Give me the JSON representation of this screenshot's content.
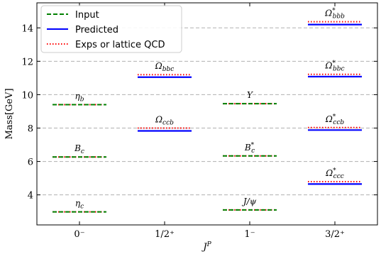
{
  "chart_data": {
    "type": "line",
    "xlabel": "J^P",
    "ylabel": "Mass[GeV]",
    "ylim": [
      2.2,
      15.5
    ],
    "yticks": [
      4,
      6,
      8,
      10,
      12,
      14
    ],
    "grid": "horizontal-dashed",
    "categories": [
      "0⁻",
      "1/2⁺",
      "1⁻",
      "3/2⁺"
    ],
    "legend": {
      "placement": "top-left",
      "entries": [
        {
          "name": "Input",
          "color": "#008000",
          "style": "dashed"
        },
        {
          "name": "Predicted",
          "color": "#0000ff",
          "style": "solid"
        },
        {
          "name": "Exps or lattice QCD",
          "color": "#ff0000",
          "style": "dotted"
        }
      ]
    },
    "levels": [
      {
        "category": 0,
        "label": "η_c",
        "value": 2.98,
        "kind": "input"
      },
      {
        "category": 0,
        "label": "B_c",
        "value": 6.27,
        "kind": "input"
      },
      {
        "category": 0,
        "label": "η_b",
        "value": 9.4,
        "kind": "input"
      },
      {
        "category": 1,
        "label": "Ω_ccb",
        "value": 7.83,
        "kind": "predicted",
        "exp": 8.0
      },
      {
        "category": 1,
        "label": "Ω_bbc",
        "value": 11.05,
        "kind": "predicted",
        "exp": 11.2
      },
      {
        "category": 2,
        "label": "J/ψ",
        "value": 3.1,
        "kind": "input"
      },
      {
        "category": 2,
        "label": "B_c^*",
        "value": 6.33,
        "kind": "input"
      },
      {
        "category": 2,
        "label": "Υ",
        "value": 9.46,
        "kind": "input"
      },
      {
        "category": 3,
        "label": "Ω*_ccc",
        "value": 4.65,
        "kind": "predicted",
        "exp": 4.79
      },
      {
        "category": 3,
        "label": "Ω*_ccb",
        "value": 7.88,
        "kind": "predicted",
        "exp": 8.03
      },
      {
        "category": 3,
        "label": "Ω*_bbc",
        "value": 11.08,
        "kind": "predicted",
        "exp": 11.22
      },
      {
        "category": 3,
        "label": "Ω*_bbb",
        "value": 14.2,
        "kind": "predicted",
        "exp": 14.37
      }
    ]
  }
}
